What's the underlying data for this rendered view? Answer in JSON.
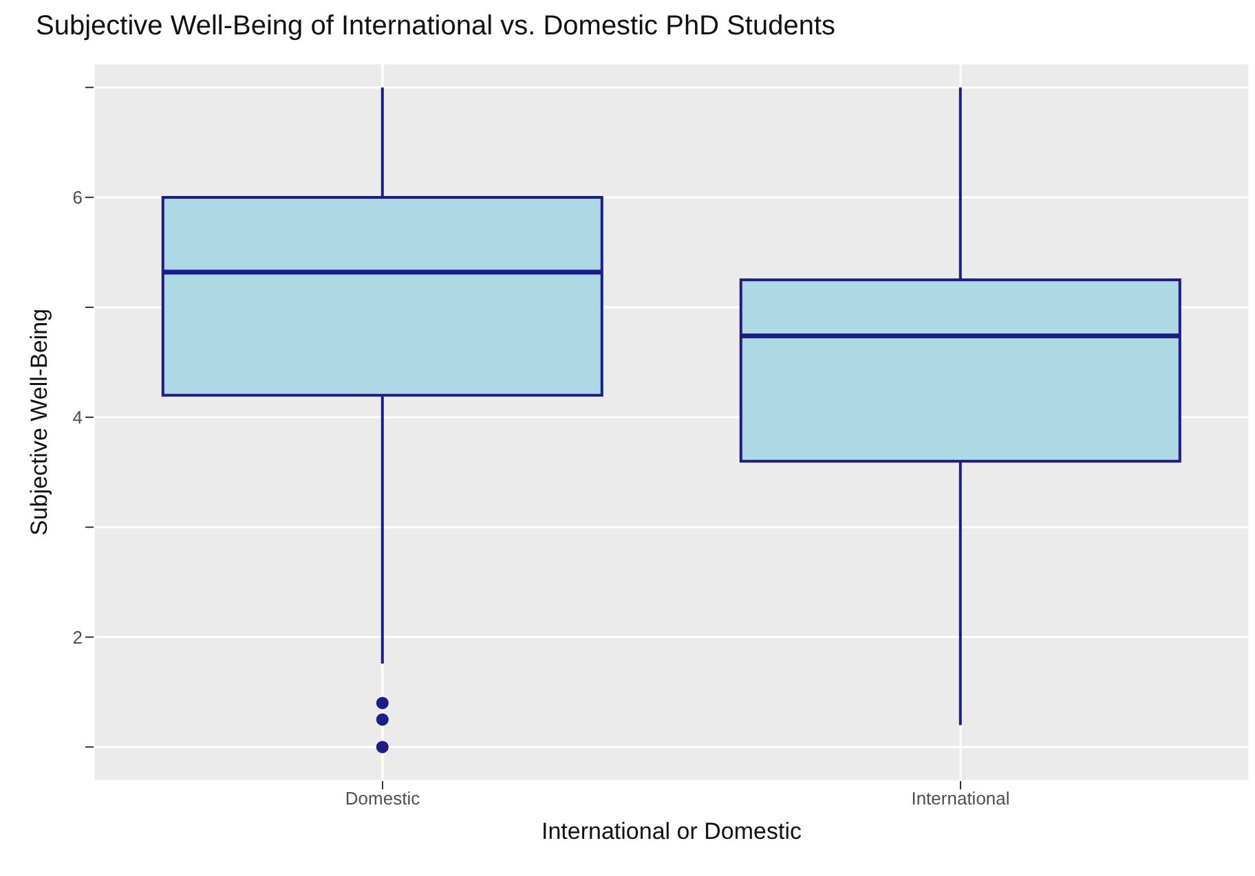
{
  "chart_data": {
    "type": "box",
    "title": "Subjective Well-Being of International vs. Domestic PhD Students",
    "xlabel": "International or Domestic",
    "ylabel": "Subjective Well-Being",
    "categories": [
      "Domestic",
      "International"
    ],
    "series": [
      {
        "color": "#add8e6",
        "boxes": [
          {
            "low": 1.76,
            "q1": 4.2,
            "median": 5.32,
            "q3": 6.0,
            "high": 7.0,
            "outliers": [
              1.0,
              1.25,
              1.4
            ]
          },
          {
            "low": 1.2,
            "q1": 3.6,
            "median": 4.74,
            "q3": 5.25,
            "high": 7.0
          }
        ]
      }
    ],
    "ylim": [
      0.69,
      7.22
    ],
    "yticks": [
      {
        "value": 1,
        "label": null
      },
      2,
      {
        "value": 3,
        "label": null
      },
      4,
      {
        "value": 5,
        "label": null
      },
      6,
      {
        "value": 7,
        "label": null
      }
    ],
    "grid": true
  }
}
